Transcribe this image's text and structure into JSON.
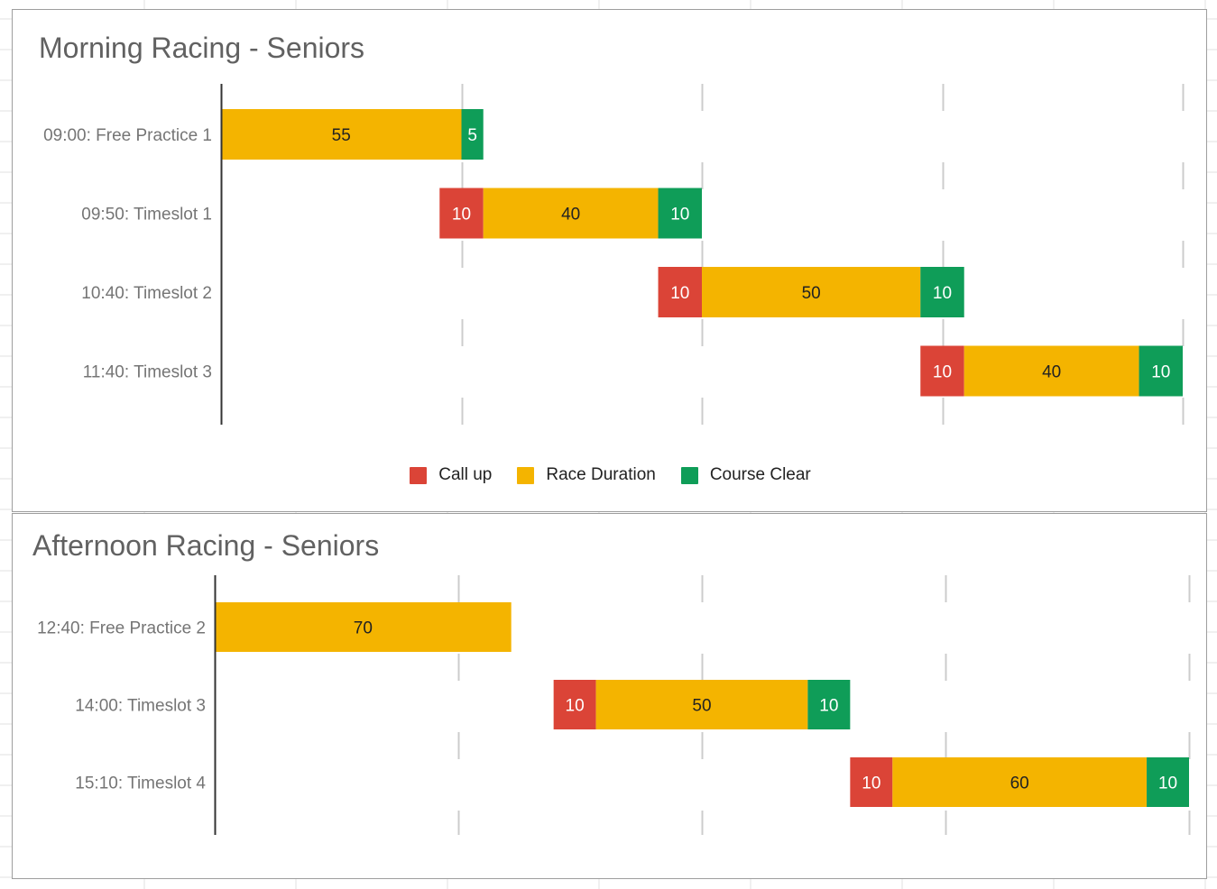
{
  "colors": {
    "callup": "#db4437",
    "race": "#f4b400",
    "clear": "#0f9d58",
    "label_dark": "#222222",
    "label_light": "#ffffff",
    "category_text": "#757575",
    "grid": "#cccccc",
    "axis": "#333333"
  },
  "legend": [
    {
      "key": "callup",
      "label": "Call up",
      "color": "#db4437"
    },
    {
      "key": "race",
      "label": "Race Duration",
      "color": "#f4b400"
    },
    {
      "key": "clear",
      "label": "Course Clear",
      "color": "#0f9d58"
    }
  ],
  "chart_data": [
    {
      "type": "bar",
      "orientation": "horizontal",
      "stacked": true,
      "title": "Morning Racing - Seniors",
      "categories": [
        "09:00: Free Practice 1",
        "09:50: Timeslot 1",
        "10:40: Timeslot 2",
        "11:40: Timeslot 3"
      ],
      "offsets": [
        0,
        50,
        100,
        160
      ],
      "series": [
        {
          "name": "Call up",
          "key": "callup",
          "values": [
            0,
            10,
            10,
            10
          ]
        },
        {
          "name": "Race Duration",
          "key": "race",
          "values": [
            55,
            40,
            50,
            40
          ]
        },
        {
          "name": "Course Clear",
          "key": "clear",
          "values": [
            5,
            10,
            10,
            10
          ]
        }
      ],
      "xlim": [
        0,
        220
      ],
      "grid_every": 55,
      "grid": true,
      "legend_position": "bottom"
    },
    {
      "type": "bar",
      "orientation": "horizontal",
      "stacked": true,
      "title": "Afternoon Racing - Seniors",
      "categories": [
        "12:40: Free Practice 2",
        "14:00: Timeslot 3",
        "15:10: Timeslot 4"
      ],
      "offsets": [
        0,
        80,
        150
      ],
      "series": [
        {
          "name": "Call up",
          "key": "callup",
          "values": [
            0,
            10,
            10
          ]
        },
        {
          "name": "Race Duration",
          "key": "race",
          "values": [
            70,
            50,
            60
          ]
        },
        {
          "name": "Course Clear",
          "key": "clear",
          "values": [
            0,
            10,
            10
          ]
        }
      ],
      "xlim": [
        0,
        230
      ],
      "grid_every": 57.5,
      "grid": true,
      "legend_position": "none"
    }
  ]
}
